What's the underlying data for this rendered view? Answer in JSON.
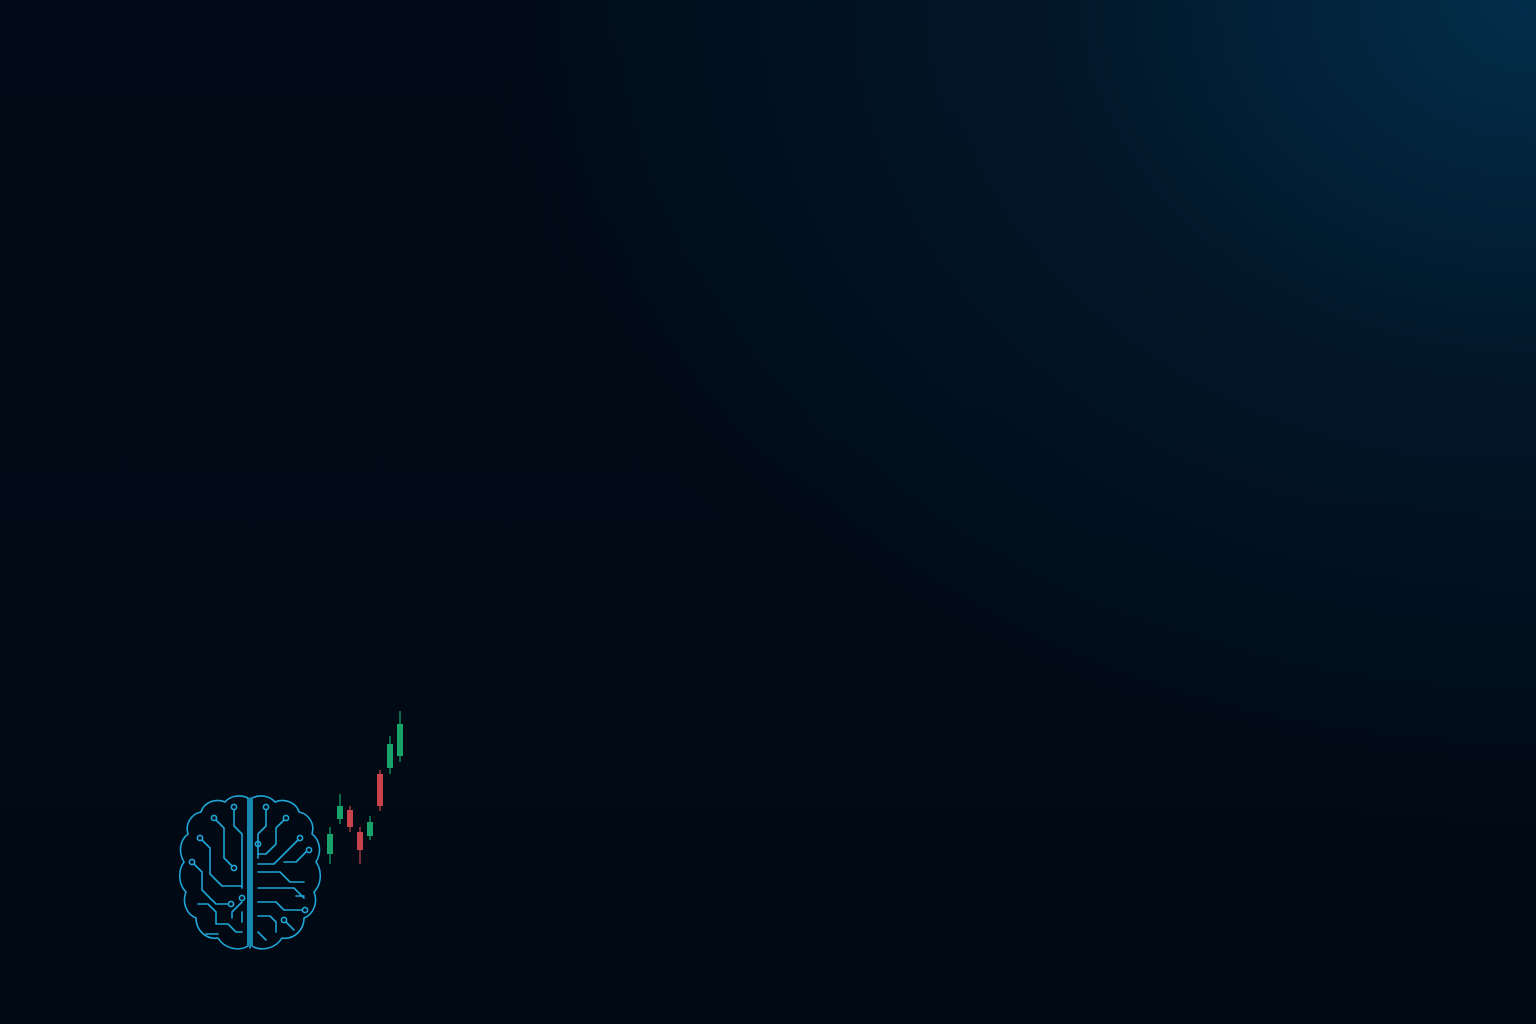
{
  "colors": {
    "background_dark": "#010a14",
    "background_glow": "#03304e",
    "brain_outline": "#1fa6d6",
    "candle_up": "#18a36a",
    "candle_down": "#c9434d"
  },
  "logo": {
    "icon": "circuit-brain-icon"
  },
  "chart_data": {
    "type": "candlestick",
    "candles": [
      {
        "direction": "up",
        "open": 20,
        "close": 40,
        "high": 47,
        "low": 10
      },
      {
        "direction": "up",
        "open": 55,
        "close": 68,
        "high": 80,
        "low": 50
      },
      {
        "direction": "down",
        "open": 64,
        "close": 47,
        "high": 68,
        "low": 42
      },
      {
        "direction": "down",
        "open": 42,
        "close": 24,
        "high": 47,
        "low": 10
      },
      {
        "direction": "up",
        "open": 38,
        "close": 52,
        "high": 58,
        "low": 34
      },
      {
        "direction": "down",
        "open": 100,
        "close": 68,
        "high": 104,
        "low": 63
      },
      {
        "direction": "up",
        "open": 106,
        "close": 130,
        "high": 138,
        "low": 100
      },
      {
        "direction": "up",
        "open": 118,
        "close": 150,
        "high": 163,
        "low": 112
      }
    ],
    "ylim": [
      0,
      170
    ]
  }
}
